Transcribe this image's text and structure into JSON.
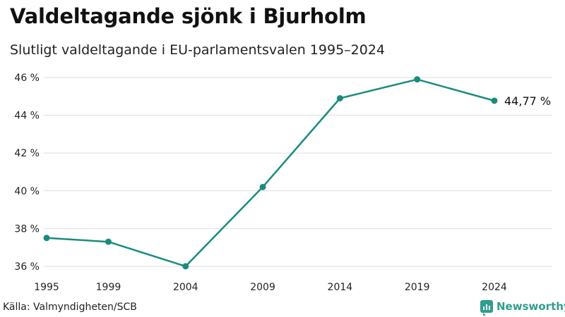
{
  "header": {
    "title": "Valdeltagande sjönk i Bjurholm",
    "subtitle": "Slutligt valdeltagande i EU-parlamentsvalen 1995–2024"
  },
  "footer": {
    "source": "Källa: Valmyndigheten/SCB",
    "brand": "Newsworthy"
  },
  "colors": {
    "line": "#1a8c7e",
    "grid": "#dddddd",
    "brand": "#2f9e8f"
  },
  "chart_data": {
    "type": "line",
    "title": "Valdeltagande sjönk i Bjurholm",
    "subtitle": "Slutligt valdeltagande i EU-parlamentsvalen 1995–2024",
    "xlabel": "",
    "ylabel": "",
    "x": [
      1995,
      1999,
      2004,
      2009,
      2014,
      2019,
      2024
    ],
    "x_tick_labels": [
      "1995",
      "1999",
      "2004",
      "2009",
      "2014",
      "2019",
      "2024"
    ],
    "series": [
      {
        "values": [
          37.5,
          37.3,
          36.0,
          40.2,
          44.9,
          45.9,
          44.77
        ]
      }
    ],
    "ylim": [
      36,
      46
    ],
    "y_ticks": [
      36,
      38,
      40,
      42,
      44,
      46
    ],
    "y_tick_labels": [
      "36 %",
      "38 %",
      "40 %",
      "42 %",
      "44 %",
      "46 %"
    ],
    "end_label": "44,77 %",
    "grid": true,
    "legend": "none"
  }
}
